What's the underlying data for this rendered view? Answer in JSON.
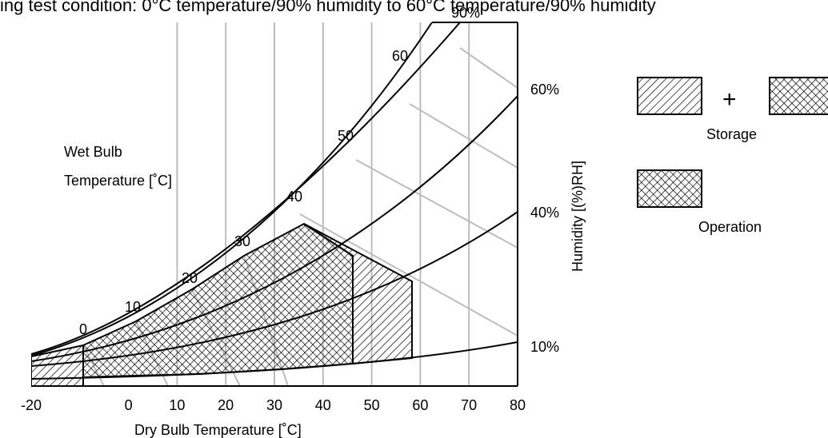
{
  "caption": "ing test condition: 0°C temperature/90% humidity to 60°C temperature/90% humidity",
  "chart_data": {
    "type": "psychrometric",
    "xlabel": "Dry Bulb Temperature [˚C]",
    "ylabel": "Humidity [(%)RH]",
    "x_ticks": [
      "-20",
      "0",
      "10",
      "20",
      "30",
      "40",
      "50",
      "60",
      "70",
      "80"
    ],
    "xlim": [
      -20,
      80
    ],
    "rh_curves": [
      {
        "label": "90%",
        "rh": 90
      },
      {
        "label": "60%",
        "rh": 60
      },
      {
        "label": "40%",
        "rh": 40
      },
      {
        "label": "10%",
        "rh": 10
      }
    ],
    "wet_bulb_title_1": "Wet Bulb",
    "wet_bulb_title_2": "Temperature [˚C]",
    "wet_bulb_ticks": [
      "0",
      "10",
      "20",
      "30",
      "40",
      "50",
      "60"
    ],
    "regions": [
      {
        "name": "Storage",
        "range_dry_bulb_c": [
          -20,
          60
        ]
      },
      {
        "name": "Operation",
        "range_dry_bulb_c": [
          0,
          50
        ]
      }
    ]
  },
  "legend": {
    "plus": "+",
    "storage_label": "Storage",
    "operation_label": "Operation"
  },
  "colors": {
    "grid": "#bdbdbd",
    "line": "#000000"
  }
}
